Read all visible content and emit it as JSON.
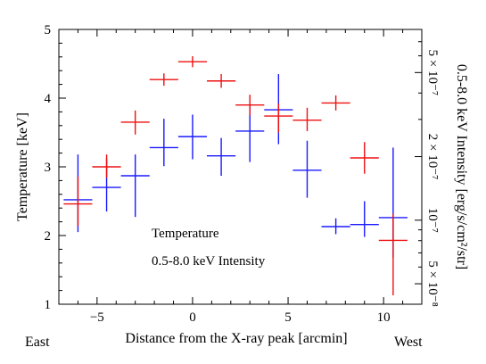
{
  "chart_data": {
    "type": "scatter",
    "xlabel": "Distance from the X-ray peak [arcmin]",
    "ylabel": "Temperature [keV]",
    "y2label": "0.5-8.0 keV Intensity [erg/s/cm²/str]",
    "xlim": [
      -7,
      12
    ],
    "ylim": [
      1,
      5
    ],
    "y2scale": "log",
    "y2lim": [
      4e-08,
      8e-07
    ],
    "x_ticks": [
      -5,
      0,
      5,
      10
    ],
    "y_ticks": [
      1,
      2,
      3,
      4,
      5
    ],
    "y2_ticks": [
      {
        "value": 5e-08,
        "label": "5 × 10⁻⁸"
      },
      {
        "value": 1e-07,
        "label": "10⁻⁷"
      },
      {
        "value": 2e-07,
        "label": "2 × 10⁻⁷"
      },
      {
        "value": 5e-07,
        "label": "5 × 10⁻⁷"
      }
    ],
    "x_side_labels": {
      "left": "East",
      "right": "West"
    },
    "series": [
      {
        "name": "Temperature",
        "color": "#1a1aff",
        "axis": "left",
        "points": [
          {
            "x": -6.0,
            "xerr": 0.75,
            "y": 2.52,
            "ylo": 2.05,
            "yhi": 3.18
          },
          {
            "x": -4.5,
            "xerr": 0.75,
            "y": 2.7,
            "ylo": 2.35,
            "yhi": 3.12
          },
          {
            "x": -3.0,
            "xerr": 0.75,
            "y": 2.87,
            "ylo": 2.27,
            "yhi": 3.18
          },
          {
            "x": -1.5,
            "xerr": 0.75,
            "y": 3.28,
            "ylo": 3.01,
            "yhi": 3.7
          },
          {
            "x": 0.0,
            "xerr": 0.75,
            "y": 3.44,
            "ylo": 3.11,
            "yhi": 3.76
          },
          {
            "x": 1.5,
            "xerr": 0.75,
            "y": 3.16,
            "ylo": 2.87,
            "yhi": 3.42
          },
          {
            "x": 3.0,
            "xerr": 0.75,
            "y": 3.52,
            "ylo": 3.07,
            "yhi": 3.92
          },
          {
            "x": 4.5,
            "xerr": 0.75,
            "y": 3.83,
            "ylo": 3.33,
            "yhi": 4.35
          },
          {
            "x": 6.0,
            "xerr": 0.75,
            "y": 2.95,
            "ylo": 2.55,
            "yhi": 3.38
          },
          {
            "x": 7.5,
            "xerr": 0.75,
            "y": 2.13,
            "ylo": 2.02,
            "yhi": 2.25
          },
          {
            "x": 9.0,
            "xerr": 0.75,
            "y": 2.16,
            "ylo": 1.98,
            "yhi": 2.5
          },
          {
            "x": 10.5,
            "xerr": 0.75,
            "y": 2.26,
            "ylo": 1.68,
            "yhi": 3.28
          }
        ]
      },
      {
        "name": "0.5-8.0 keV Intensity",
        "color": "#ee1111",
        "axis": "right",
        "points": [
          {
            "x": -6.0,
            "xerr": 0.75,
            "y": 2.46,
            "ylo": 2.14,
            "yhi": 2.86
          },
          {
            "x": -4.5,
            "xerr": 0.75,
            "y": 3.0,
            "ylo": 2.84,
            "yhi": 3.18
          },
          {
            "x": -3.0,
            "xerr": 0.75,
            "y": 3.65,
            "ylo": 3.47,
            "yhi": 3.82
          },
          {
            "x": -1.5,
            "xerr": 0.75,
            "y": 4.27,
            "ylo": 4.18,
            "yhi": 4.36
          },
          {
            "x": 0.0,
            "xerr": 0.75,
            "y": 4.53,
            "ylo": 4.45,
            "yhi": 4.61
          },
          {
            "x": 1.5,
            "xerr": 0.75,
            "y": 4.25,
            "ylo": 4.15,
            "yhi": 4.35
          },
          {
            "x": 3.0,
            "xerr": 0.75,
            "y": 3.9,
            "ylo": 3.75,
            "yhi": 4.05
          },
          {
            "x": 4.5,
            "xerr": 0.75,
            "y": 3.74,
            "ylo": 3.5,
            "yhi": 3.92
          },
          {
            "x": 6.0,
            "xerr": 0.75,
            "y": 3.68,
            "ylo": 3.52,
            "yhi": 3.86
          },
          {
            "x": 7.5,
            "xerr": 0.75,
            "y": 3.93,
            "ylo": 3.82,
            "yhi": 4.04
          },
          {
            "x": 9.0,
            "xerr": 0.75,
            "y": 3.13,
            "ylo": 2.9,
            "yhi": 3.36
          },
          {
            "x": 10.5,
            "xerr": 0.75,
            "y": 1.93,
            "ylo": 1.13,
            "yhi": 2.32
          }
        ]
      }
    ],
    "legend": [
      {
        "label": "Temperature",
        "color": "#1a1aff"
      },
      {
        "label": "0.5-8.0 keV Intensity",
        "color": "#ee1111"
      }
    ],
    "legend_position": "lower-center",
    "grid": false
  }
}
